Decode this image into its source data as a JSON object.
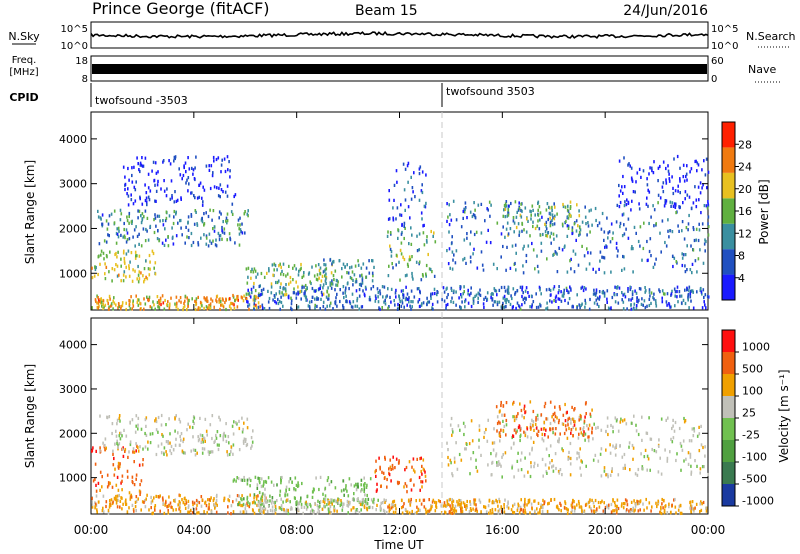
{
  "header": {
    "station": "Prince George (fitACF)",
    "beam": "Beam 15",
    "date": "24/Jun/2016"
  },
  "strips": {
    "nsky": {
      "label": "N.Sky",
      "ticks": [
        "10^5",
        "10^0"
      ],
      "right_label": "N.Search",
      "right_ticks": [
        "10^5",
        "10^0"
      ],
      "series_color": "#000000"
    },
    "freq": {
      "label_line1": "Freq.",
      "label_line2": "[MHz]",
      "ticks": [
        "18",
        "8"
      ],
      "right_label": "Nave",
      "right_ticks": [
        "60",
        "0"
      ],
      "series_color": "#000000"
    },
    "cpid": {
      "label": "CPID",
      "entries": [
        {
          "name": "twofsound -3503",
          "start_hour": 0
        },
        {
          "name": "twofsound 3503",
          "start_hour": 14
        }
      ]
    }
  },
  "chart_data": [
    {
      "type": "heatmap",
      "name": "power",
      "ylabel": "Slant Range [km]",
      "xlabel": "",
      "x_range_hours": [
        0,
        24
      ],
      "ylim": [
        180,
        4600
      ],
      "y_ticks": [
        "1000",
        "2000",
        "3000",
        "4000"
      ],
      "y_tick_values": [
        1000,
        2000,
        3000,
        4000
      ],
      "colorbar": {
        "label": "Power [dB]",
        "ticks": [
          "4",
          "8",
          "12",
          "16",
          "20",
          "24",
          "28"
        ],
        "tick_values": [
          4,
          8,
          12,
          16,
          20,
          24,
          28
        ],
        "range": [
          0,
          32
        ],
        "colors": [
          "#1a1aff",
          "#2050c0",
          "#3a8fa0",
          "#60b040",
          "#e8c020",
          "#f07a10",
          "#ff2000"
        ]
      },
      "regions": [
        {
          "t0": 0.0,
          "t1": 6.6,
          "r0": 180,
          "r1": 500,
          "v": 22
        },
        {
          "t0": 0.0,
          "t1": 2.5,
          "r0": 800,
          "r1": 1500,
          "v": 18
        },
        {
          "t0": 0.2,
          "t1": 6.2,
          "r0": 1600,
          "r1": 2400,
          "v": 10
        },
        {
          "t0": 1.2,
          "t1": 5.6,
          "r0": 2500,
          "r1": 3600,
          "v": 3
        },
        {
          "t0": 6.0,
          "t1": 9.5,
          "r0": 500,
          "r1": 1200,
          "v": 15
        },
        {
          "t0": 9.0,
          "t1": 11.0,
          "r0": 700,
          "r1": 1300,
          "v": 12
        },
        {
          "t0": 11.5,
          "t1": 13.5,
          "r0": 800,
          "r1": 2000,
          "v": 14
        },
        {
          "t0": 13.8,
          "t1": 24.0,
          "r0": 1000,
          "r1": 2600,
          "v": 9
        },
        {
          "t0": 16.0,
          "t1": 19.0,
          "r0": 1800,
          "r1": 2600,
          "v": 14
        },
        {
          "t0": 6.0,
          "t1": 24.0,
          "r0": 180,
          "r1": 700,
          "v": 8
        },
        {
          "t0": 20.5,
          "t1": 24.0,
          "r0": 2400,
          "r1": 3600,
          "v": 2
        },
        {
          "t0": 11.5,
          "t1": 13.0,
          "r0": 2000,
          "r1": 3500,
          "v": 5
        }
      ]
    },
    {
      "type": "heatmap",
      "name": "velocity",
      "ylabel": "Slant Range [km]",
      "xlabel": "Time UT",
      "x_range_hours": [
        0,
        24
      ],
      "x_ticks": [
        "00:00",
        "04:00",
        "08:00",
        "12:00",
        "16:00",
        "20:00",
        "00:00"
      ],
      "x_tick_hours": [
        0,
        4,
        8,
        12,
        16,
        20,
        24
      ],
      "ylim": [
        180,
        4600
      ],
      "y_ticks": [
        "1000",
        "2000",
        "3000",
        "4000"
      ],
      "y_tick_values": [
        1000,
        2000,
        3000,
        4000
      ],
      "colorbar": {
        "label": "Velocity [m s⁻¹]",
        "ticks": [
          "1000",
          "500",
          "100",
          "25",
          "-25",
          "-100",
          "-500",
          "-1000"
        ],
        "colors": [
          "#1a3aa0",
          "#3a7a50",
          "#50a040",
          "#70c050",
          "#c0c0b8",
          "#f0a000",
          "#f06010",
          "#ff1010"
        ]
      },
      "regions": [
        {
          "t0": 0.0,
          "t1": 6.8,
          "r0": 180,
          "r1": 600,
          "c": 5
        },
        {
          "t0": 0.0,
          "t1": 2.0,
          "r0": 600,
          "r1": 1700,
          "c": 6
        },
        {
          "t0": 0.3,
          "t1": 6.3,
          "r0": 1500,
          "r1": 2400,
          "c": 4
        },
        {
          "t0": 5.5,
          "t1": 11.0,
          "r0": 300,
          "r1": 1000,
          "c": 3
        },
        {
          "t0": 6.5,
          "t1": 11.5,
          "r0": 180,
          "r1": 500,
          "c": 4
        },
        {
          "t0": 11.0,
          "t1": 13.0,
          "r0": 600,
          "r1": 1500,
          "c": 6
        },
        {
          "t0": 13.8,
          "t1": 24.0,
          "r0": 1000,
          "r1": 2400,
          "c": 4
        },
        {
          "t0": 15.7,
          "t1": 19.5,
          "r0": 1900,
          "r1": 2700,
          "c": 6
        },
        {
          "t0": 11.5,
          "t1": 24.0,
          "r0": 180,
          "r1": 500,
          "c": 5
        }
      ]
    }
  ]
}
